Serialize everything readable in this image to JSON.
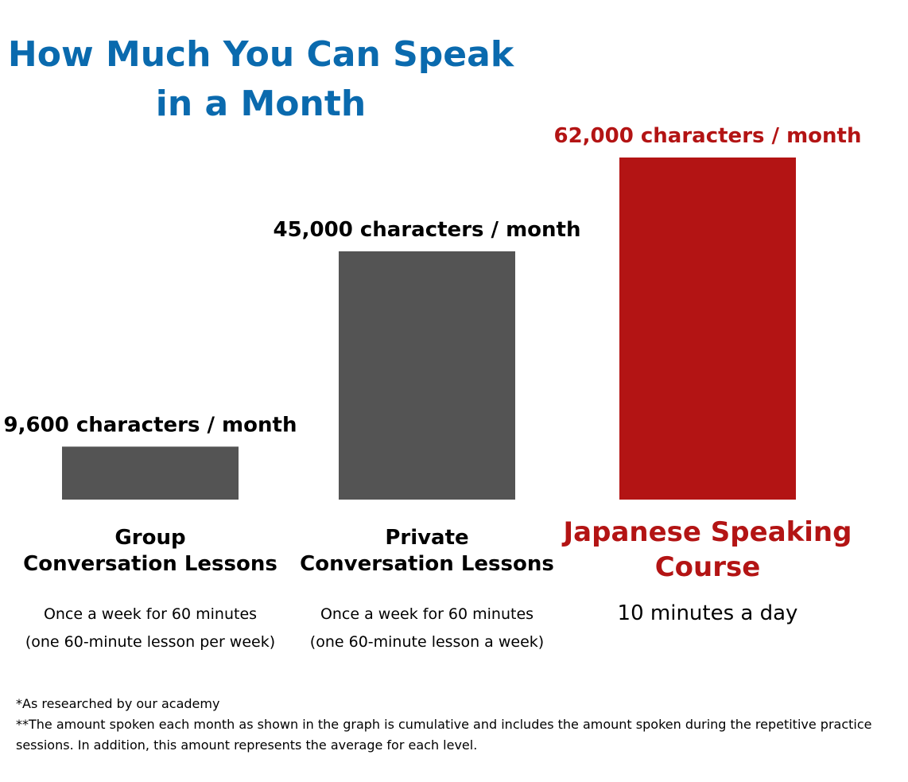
{
  "title": {
    "line1": "How Much You Can Speak",
    "line2": "in a Month"
  },
  "chart_data": {
    "type": "bar",
    "title": "How Much You Can Speak in a Month",
    "categories": [
      [
        "Group",
        "Conversation Lessons"
      ],
      [
        "Private",
        "Conversation Lessons"
      ],
      [
        "Japanese Speaking",
        "Course"
      ]
    ],
    "values": [
      9600,
      45000,
      62000
    ],
    "unit": "characters / month",
    "value_labels": [
      "9,600 characters / month",
      "45,000 characters / month",
      "62,000 characters / month"
    ],
    "descriptions": [
      [
        "Once a week for 60 minutes",
        "(one 60-minute lesson per week)"
      ],
      [
        "Once a week for 60 minutes",
        "(one 60-minute lesson a week)"
      ],
      [
        "10 minutes a day"
      ]
    ],
    "highlight_index": 2,
    "ylim": [
      0,
      62000
    ],
    "grid": false,
    "colors": {
      "default_bar": "#545454",
      "highlight_bar": "#b31414",
      "title": "#0a6aae",
      "default_text": "#000000"
    }
  },
  "notes": [
    "*As researched by our academy",
    "**The amount spoken each month as shown in the graph is cumulative and includes the amount spoken during the repetitive practice sessions. In addition, this amount represents the average for each level."
  ]
}
